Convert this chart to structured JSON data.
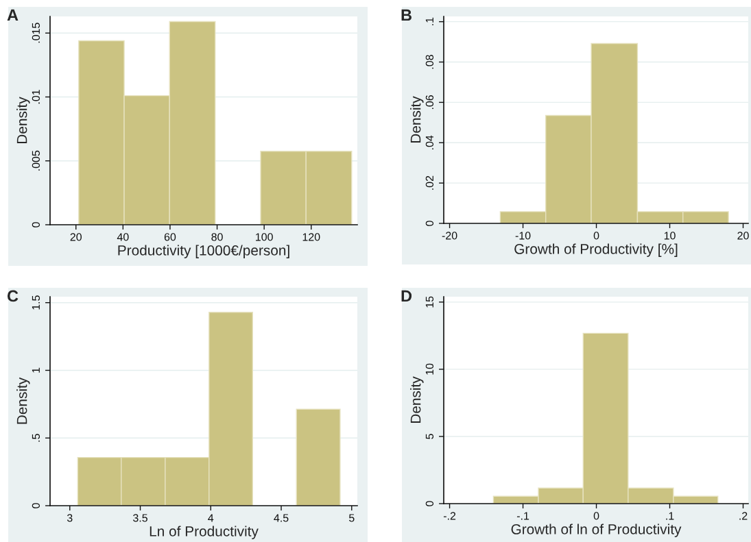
{
  "chart_data": [
    {
      "type": "histogram",
      "title": "A",
      "xlabel": "Productivity [1000€/person]",
      "ylabel": "Density",
      "color": "#cbc382",
      "grid": "y",
      "bins": [
        21.2,
        40.5,
        59.8,
        79.2,
        98.5,
        117.8,
        137.2
      ],
      "values": [
        0.0144,
        0.0101,
        0.0159,
        0,
        0.00575,
        0.00575
      ],
      "xlim": [
        9,
        139.6
      ],
      "ylim": [
        0,
        0.0163
      ],
      "xticks": [
        20,
        40,
        60,
        80,
        100,
        120
      ],
      "yticks": [
        0,
        {
          "value": 0.005,
          "label": ".005"
        },
        {
          "value": 0.01,
          "label": ".01"
        },
        {
          "value": 0.015,
          "label": ".015"
        }
      ]
    },
    {
      "type": "histogram",
      "title": "B",
      "xlabel": "Growth of Productivity [%]",
      "ylabel": "Density",
      "color": "#cbc382",
      "grid": "y",
      "bins": [
        -13.1,
        -6.9,
        -0.7,
        5.6,
        11.8,
        18.0
      ],
      "values": [
        0.0058,
        0.0535,
        0.0892,
        0.0058,
        0.0058
      ],
      "xlim": [
        -20.8,
        20.7
      ],
      "ylim": [
        0,
        0.1026
      ],
      "xticks": [
        -20,
        -10,
        0,
        10,
        20
      ],
      "yticks": [
        0,
        {
          "value": 0.02,
          "label": ".02"
        },
        {
          "value": 0.04,
          "label": ".04"
        },
        {
          "value": 0.06,
          "label": ".06"
        },
        {
          "value": 0.08,
          "label": ".08"
        },
        {
          "value": 0.1,
          "label": ".1"
        }
      ]
    },
    {
      "type": "histogram",
      "title": "C",
      "xlabel": "Ln of Productivity",
      "ylabel": "Density",
      "color": "#cbc382",
      "grid": "y",
      "bins": [
        3.056,
        3.365,
        3.677,
        3.988,
        4.297,
        4.608,
        4.918
      ],
      "values": [
        0.356,
        0.356,
        0.356,
        1.429,
        0,
        0.713
      ],
      "xlim": [
        2.86,
        5.04
      ],
      "ylim": [
        0,
        1.544
      ],
      "xticks": [
        3,
        3.5,
        4,
        4.5,
        5
      ],
      "yticks": [
        0,
        {
          "value": 0.5,
          "label": ".5"
        },
        1,
        1.5
      ]
    },
    {
      "type": "histogram",
      "title": "D",
      "xlabel": "Growth of ln of Productivity",
      "ylabel": "Density",
      "color": "#cbc382",
      "grid": "y",
      "bins": [
        -0.1403,
        -0.079,
        -0.018,
        0.0433,
        0.105,
        0.1656
      ],
      "values": [
        0.55,
        1.16,
        12.68,
        1.16,
        0.55
      ],
      "xlim": [
        -0.208,
        0.207
      ],
      "ylim": [
        0,
        15.4
      ],
      "xticks": [
        {
          "value": -0.2,
          "label": "-.2"
        },
        {
          "value": -0.1,
          "label": "-.1"
        },
        0,
        {
          "value": 0.1,
          "label": ".1"
        },
        {
          "value": 0.2,
          "label": ".2"
        }
      ],
      "yticks": [
        0,
        5,
        10,
        15
      ]
    }
  ]
}
